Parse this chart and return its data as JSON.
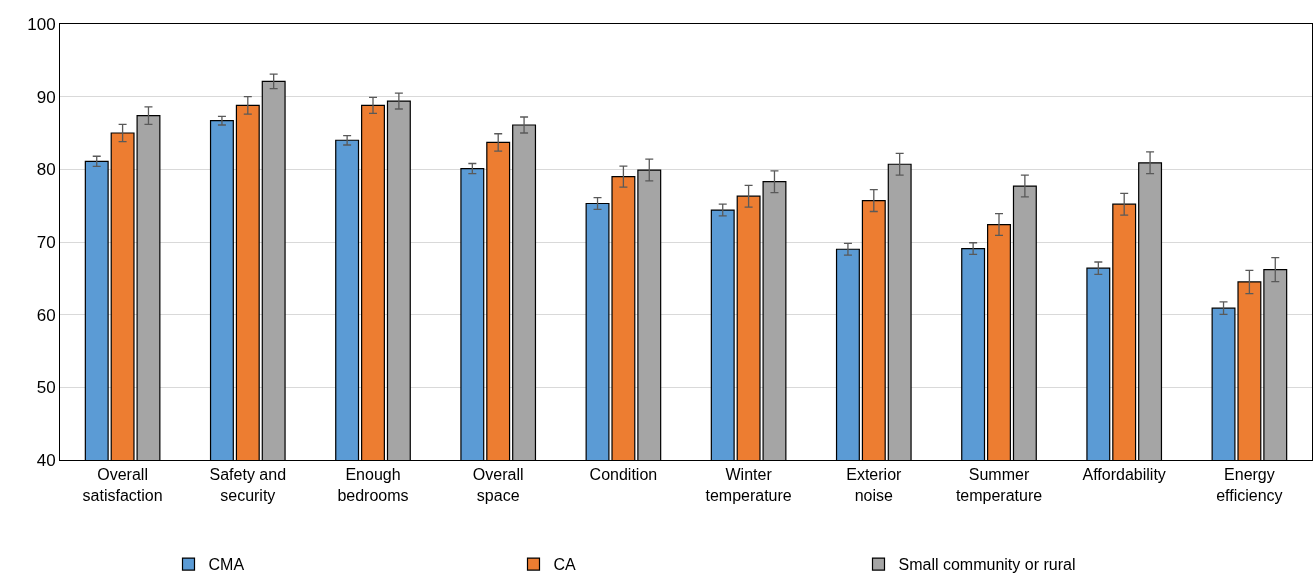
{
  "chart_data": {
    "type": "bar",
    "categories": [
      "Overall satisfaction",
      "Safety and security",
      "Enough bedrooms",
      "Overall space",
      "Condition",
      "Winter temperature",
      "Exterior noise",
      "Summer temperature",
      "Affordability",
      "Energy efficiency"
    ],
    "series": [
      {
        "name": "CMA",
        "color": "#5b9bd5",
        "values": [
          81.1,
          86.7,
          84.0,
          80.1,
          75.3,
          74.4,
          69.0,
          69.1,
          66.4,
          60.9
        ],
        "errors": [
          0.7,
          0.6,
          0.65,
          0.7,
          0.8,
          0.8,
          0.8,
          0.8,
          0.85,
          0.85
        ]
      },
      {
        "name": "CA",
        "color": "#ed7d31",
        "values": [
          85.0,
          88.8,
          88.8,
          83.7,
          79.0,
          76.3,
          75.7,
          72.4,
          75.2,
          64.5
        ],
        "errors": [
          1.2,
          1.2,
          1.1,
          1.2,
          1.45,
          1.5,
          1.5,
          1.5,
          1.5,
          1.6
        ]
      },
      {
        "name": "Small community or rural",
        "color": "#a5a5a5",
        "values": [
          87.4,
          92.1,
          89.4,
          86.1,
          79.9,
          78.3,
          80.7,
          77.7,
          80.9,
          66.2
        ],
        "errors": [
          1.2,
          1.0,
          1.1,
          1.1,
          1.5,
          1.5,
          1.5,
          1.5,
          1.5,
          1.65
        ]
      }
    ],
    "ylim": [
      40,
      100
    ],
    "yticks": [
      40,
      50,
      60,
      70,
      80,
      90,
      100
    ],
    "grid": "y",
    "legend": "bottom"
  }
}
